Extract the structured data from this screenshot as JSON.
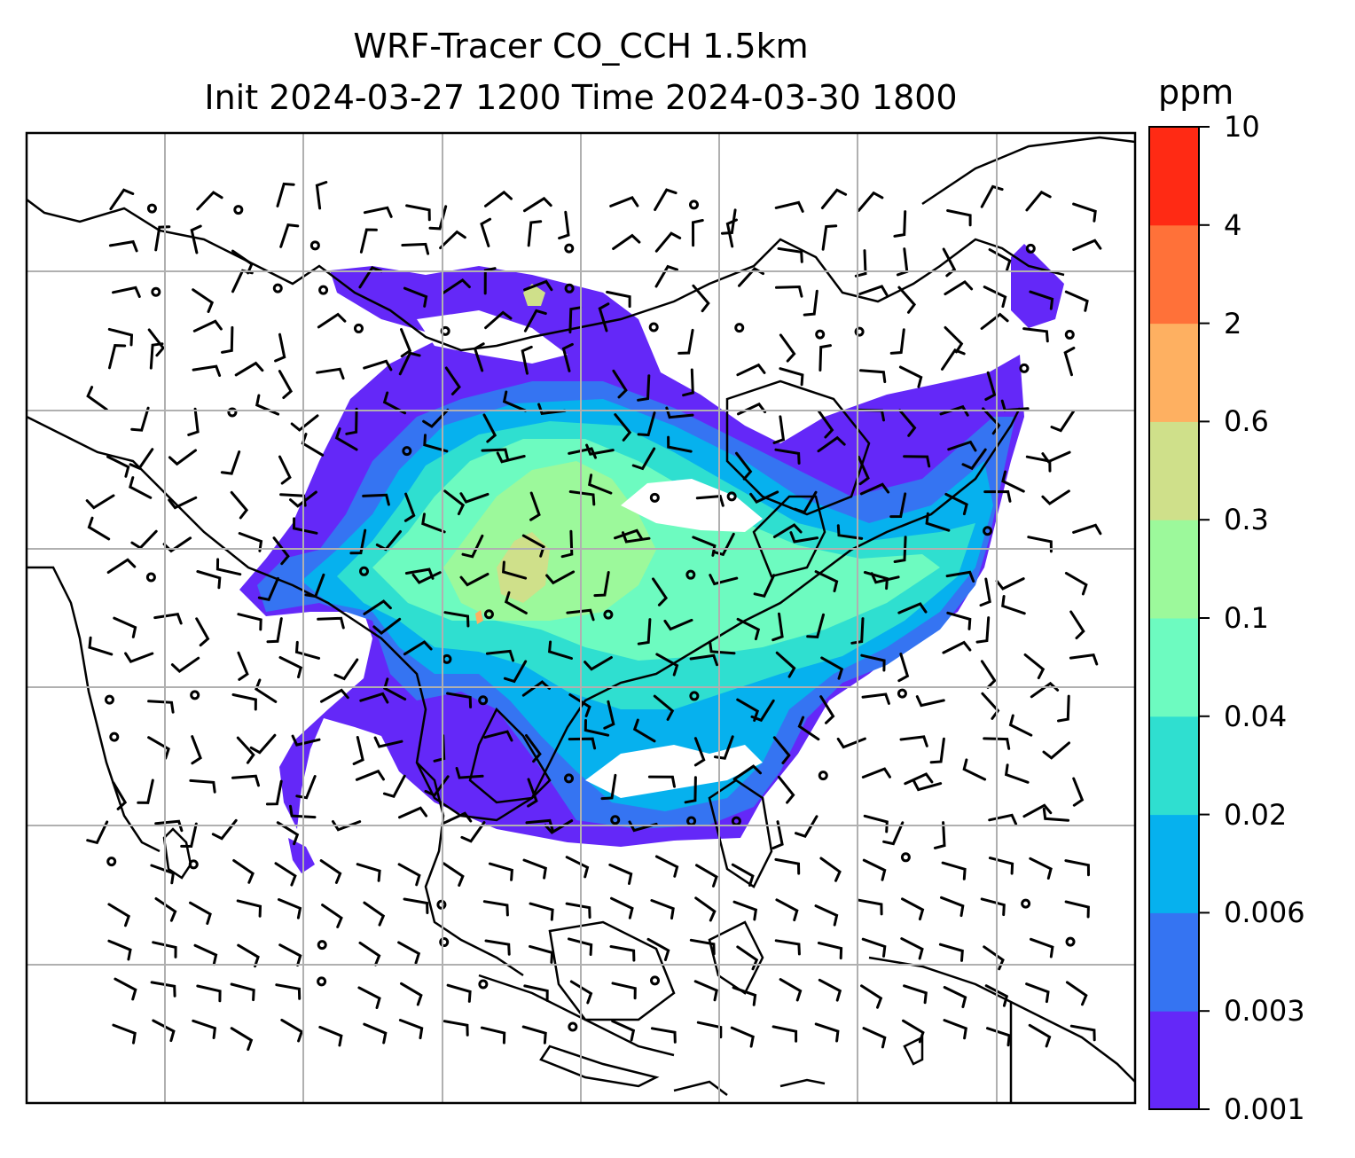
{
  "title": {
    "line1": "WRF-Tracer CO_CCH 1.5km",
    "line2": "Init 2024-03-27 1200 Time 2024-03-30 1800"
  },
  "chart_data": {
    "type": "heatmap",
    "variable": "CO_CCH tracer at 1.5km",
    "units": "ppm",
    "colorbar": {
      "unit_label": "ppm",
      "levels": [
        "0.001",
        "0.003",
        "0.006",
        "0.02",
        "0.04",
        "0.1",
        "0.3",
        "0.6",
        "2",
        "4",
        "10"
      ],
      "colors": [
        "#6428f8",
        "#3574f2",
        "#06b1ee",
        "#2fdfd0",
        "#6dfbc0",
        "#9cf99b",
        "#cfe08a",
        "#feb061",
        "#ff7139",
        "#ff2a14"
      ]
    },
    "map": {
      "gridlines": "on",
      "overlay": "wind barbs",
      "coastlines": "on"
    }
  }
}
